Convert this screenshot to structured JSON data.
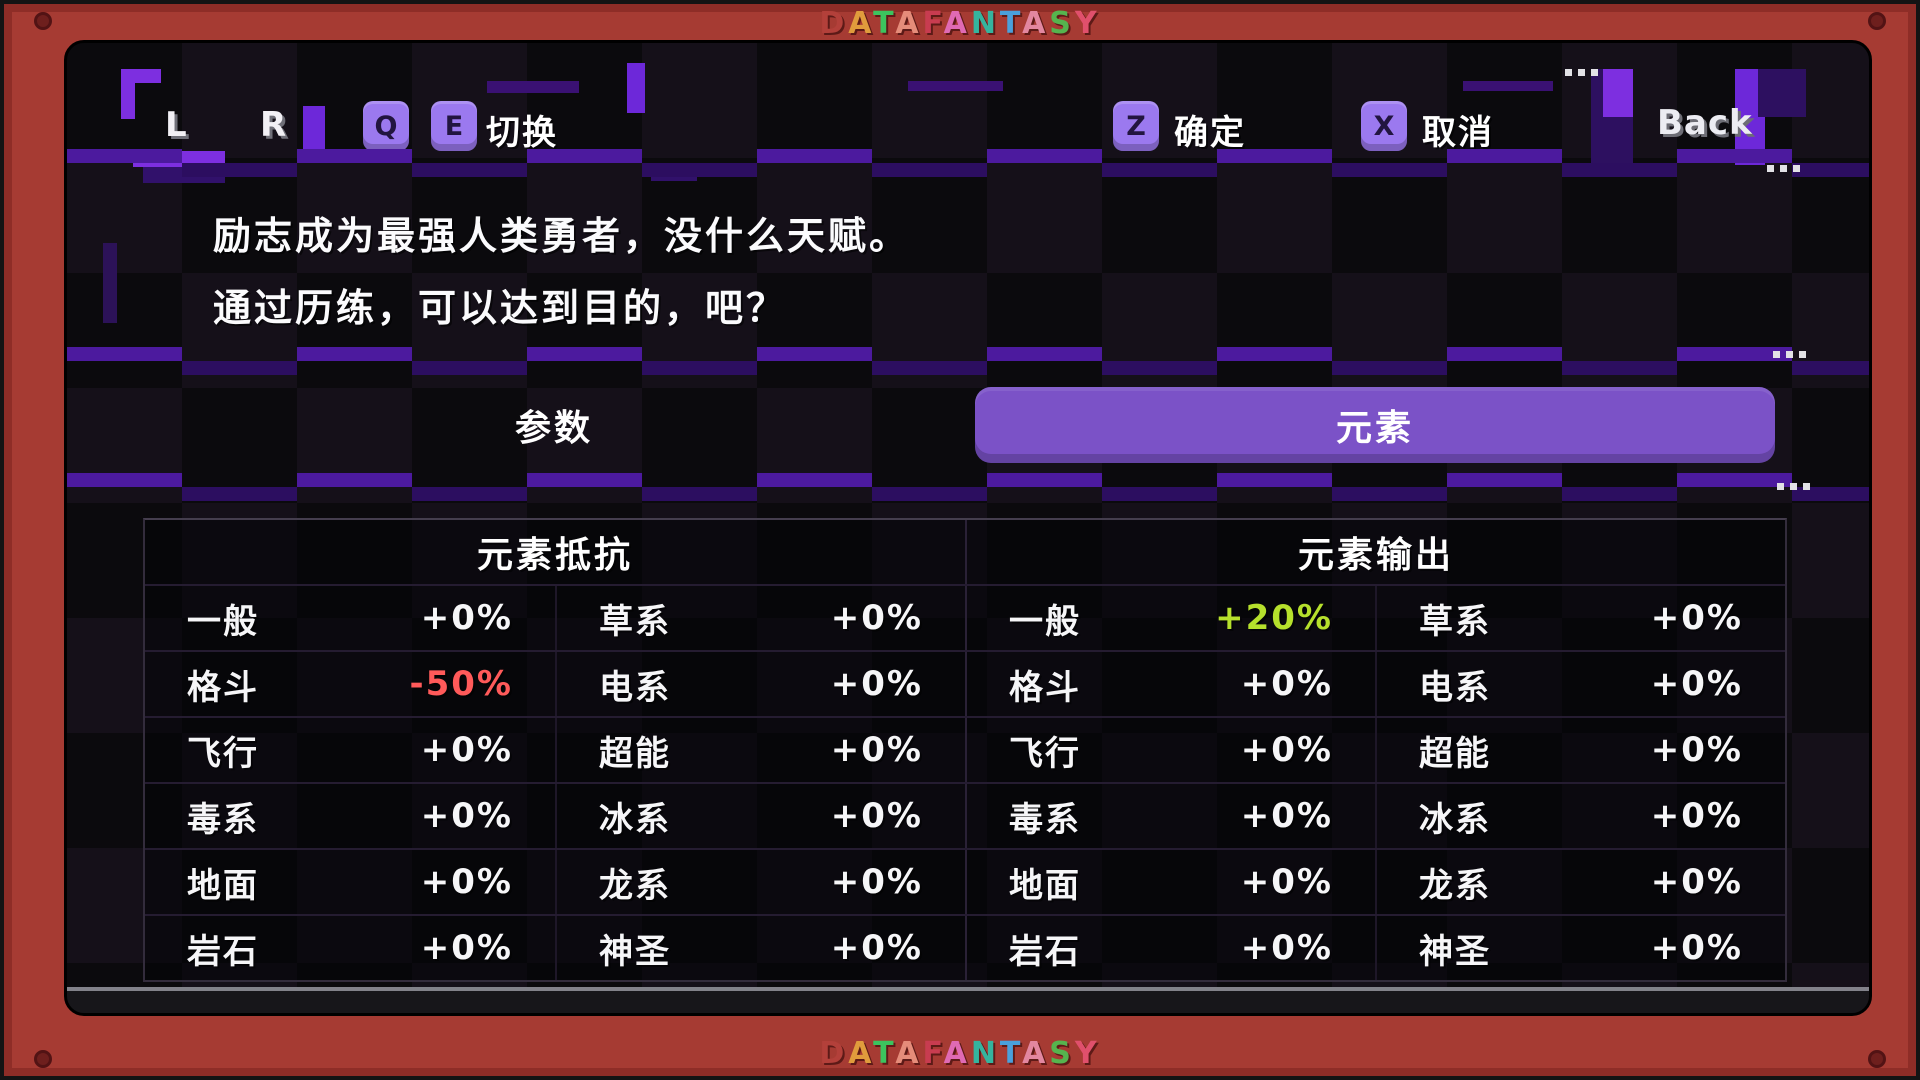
{
  "frame": {
    "title": "DATAFANTASY",
    "letter_colors": [
      "#b3403a",
      "#e09c3c",
      "#3cc45e",
      "#e58c7a",
      "#c83c50",
      "#e06ab4",
      "#35b49e",
      "#4aa0dc",
      "#e287a0",
      "#56b44e",
      "#e0506c"
    ]
  },
  "hints": {
    "l_key": "L",
    "r_key": "R",
    "switch": {
      "key1": "Q",
      "key2": "E",
      "label": "切换"
    },
    "confirm": {
      "key": "Z",
      "label": "确定"
    },
    "cancel": {
      "key": "X",
      "label": "取消"
    },
    "back_label": "Back"
  },
  "description": {
    "line1": "励志成为最强人类勇者，没什么天赋。",
    "line2": "通过历练，可以达到目的，吧？"
  },
  "tabs": {
    "params": {
      "label": "参数",
      "selected": false
    },
    "elements": {
      "label": "元素",
      "selected": true
    }
  },
  "table": {
    "headers": {
      "resist": "元素抵抗",
      "output": "元素输出"
    },
    "rows": [
      {
        "cells": [
          {
            "name": "一般",
            "value": "+0%"
          },
          {
            "name": "草系",
            "value": "+0%"
          },
          {
            "name": "一般",
            "value": "+20%",
            "tone": "pos"
          },
          {
            "name": "草系",
            "value": "+0%"
          }
        ]
      },
      {
        "cells": [
          {
            "name": "格斗",
            "value": "-50%",
            "tone": "neg"
          },
          {
            "name": "电系",
            "value": "+0%"
          },
          {
            "name": "格斗",
            "value": "+0%"
          },
          {
            "name": "电系",
            "value": "+0%"
          }
        ]
      },
      {
        "cells": [
          {
            "name": "飞行",
            "value": "+0%"
          },
          {
            "name": "超能",
            "value": "+0%"
          },
          {
            "name": "飞行",
            "value": "+0%"
          },
          {
            "name": "超能",
            "value": "+0%"
          }
        ]
      },
      {
        "cells": [
          {
            "name": "毒系",
            "value": "+0%"
          },
          {
            "name": "冰系",
            "value": "+0%"
          },
          {
            "name": "毒系",
            "value": "+0%"
          },
          {
            "name": "冰系",
            "value": "+0%"
          }
        ]
      },
      {
        "cells": [
          {
            "name": "地面",
            "value": "+0%"
          },
          {
            "name": "龙系",
            "value": "+0%"
          },
          {
            "name": "地面",
            "value": "+0%"
          },
          {
            "name": "龙系",
            "value": "+0%"
          }
        ]
      },
      {
        "cells": [
          {
            "name": "岩石",
            "value": "+0%"
          },
          {
            "name": "神圣",
            "value": "+0%"
          },
          {
            "name": "岩石",
            "value": "+0%"
          },
          {
            "name": "神圣",
            "value": "+0%"
          }
        ]
      }
    ]
  },
  "colors": {
    "frame_red": "#a63b33",
    "accent_purple": "#7b52c7",
    "keycap_purple": "#9b79ef",
    "negative": "#ff5a5a",
    "positive": "#b6e02c"
  }
}
